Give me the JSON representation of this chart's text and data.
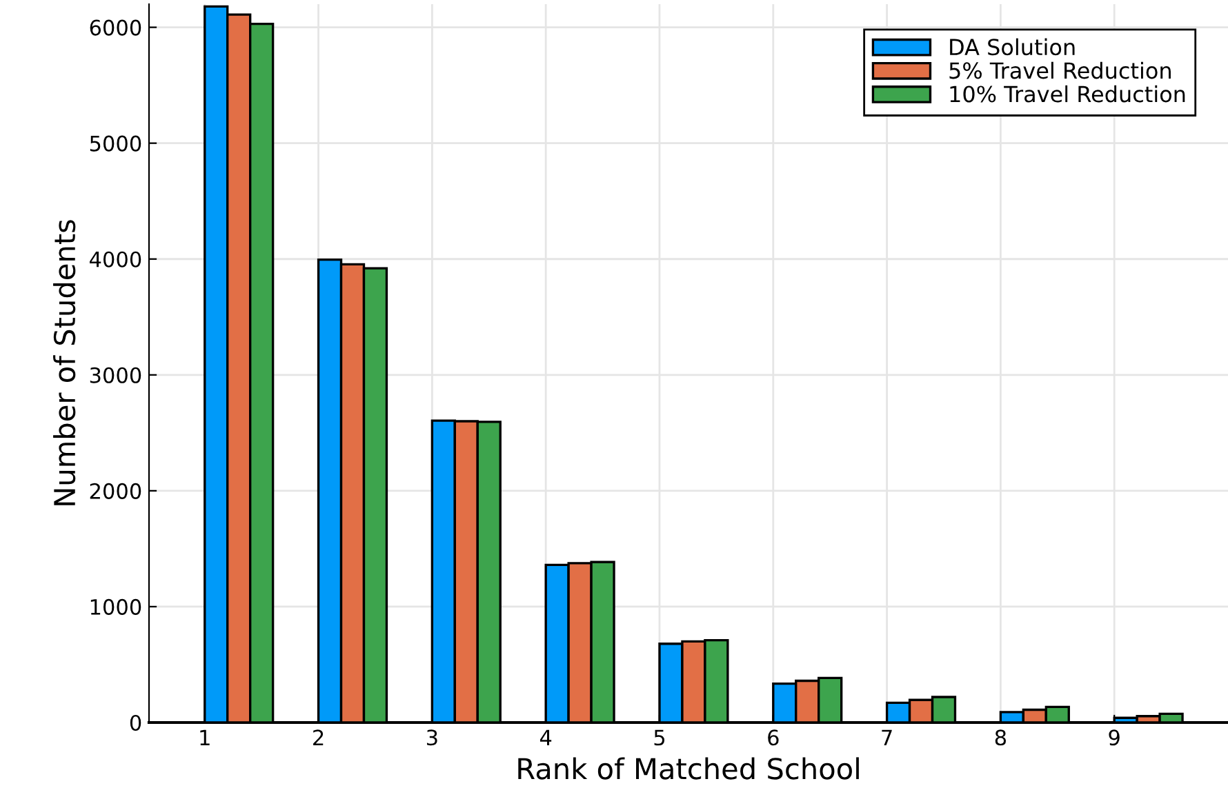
{
  "chart_data": {
    "type": "bar",
    "xlabel": "Rank of Matched School",
    "ylabel": "Number of Students",
    "x": [
      1,
      2,
      3,
      4,
      5,
      6,
      7,
      8,
      9
    ],
    "series": [
      {
        "name": "DA Solution",
        "color": "#009af9",
        "values": [
          6180,
          3995,
          2605,
          1360,
          680,
          335,
          170,
          90,
          40
        ]
      },
      {
        "name": "5% Travel Reduction",
        "color": "#e26f46",
        "values": [
          6110,
          3955,
          2600,
          1375,
          700,
          360,
          195,
          110,
          55
        ]
      },
      {
        "name": "10% Travel Reduction",
        "color": "#3da44d",
        "values": [
          6030,
          3920,
          2595,
          1385,
          710,
          385,
          220,
          135,
          75
        ]
      }
    ],
    "xlim": [
      0.51,
      10.0
    ],
    "xticks": [
      1,
      2,
      3,
      4,
      5,
      6,
      7,
      8,
      9
    ],
    "ylim": [
      0,
      6200
    ],
    "yticks": [
      0,
      1000,
      2000,
      3000,
      4000,
      5000,
      6000
    ],
    "grid": true,
    "legend": "top right"
  }
}
